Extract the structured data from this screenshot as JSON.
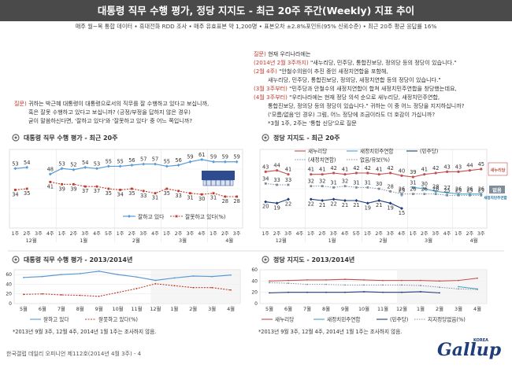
{
  "header": {
    "title": "대통령 직무 수행 평가, 정당 지지도 - 최근 20주 주간(Weekly) 지표 추이",
    "subtitle": "매주 월~목 통합 데이터 • 휴대전화 RDD 조사 • 매주 유효표본 약 1,200명 • 표본오차 ±2.8%포인트(95% 신뢰수준) • 최근 20주 평균 응답률 16%"
  },
  "question_left": {
    "label": "질문)",
    "lines": [
      "귀하는 박근혜 대통령이 대통령으로서의 직무를 잘 수행하고 있다고 보십니까,",
      "혹은 잘못 수행하고 있다고 보십니까? (긍정/부정을 답하지 않은 경우)",
      "굳이 말씀하신다면, '잘하고 있다'와 '잘못하고 있다' 중 어느 쪽입니까?"
    ]
  },
  "question_right": {
    "label": "질문)",
    "lines": [
      {
        "red": "",
        "text": "현재 우리나라에는"
      },
      {
        "red": "(2014년 2월 3주까지)",
        "text": " \"새누리당, 민주당, 통합진보당, 정의당 등의 정당이 있습니다.\""
      },
      {
        "red": "(2월 4주)",
        "text": " \"안철수의원이 추진 중인 새정치연합을 포함해,"
      },
      {
        "red": "",
        "text": "새누리당, 민주당, 통합진보당, 정의당, 새정치연합 등의 정당이 있습니다.\""
      },
      {
        "red": "(3월 3주부터)",
        "text": " \"민주당과 안철수의 새정치연합이 합쳐 새정치민주연합을 창당했는데요,"
      },
      {
        "red": "(4월 3주부터)",
        "text": " \"우리나라에는 현재 정당 의석 순으로 새누리당, 새정치민주연합,"
      },
      {
        "red": "",
        "text": "통합진보당, 정의당 등의 정당이 있습니다.\" 귀하는 이 중 어느 정당을 지지하십니까?"
      },
      {
        "red": "",
        "text": "('모름/없음'인 경우) 그럼, 어느 정당에 조금이라도 더 호감이 가십니까?"
      },
      {
        "red": "",
        "text": "*3월 1주, 2주는 '통합 신당'으로 질문"
      }
    ]
  },
  "approval_panel": {
    "title": "대통령 직무 수행 평가 - 최근 20주",
    "icon": "circle-bullet-icon",
    "legend": [
      "잘하고 있다",
      "잘못하고 있다(%)"
    ],
    "legend_badge": "BLUE-HOUSE"
  },
  "party_panel": {
    "title": "정당 지지도 - 최근 20주",
    "icon": "circle-bullet-icon",
    "legend": [
      "새누리당",
      "새정치민주연합",
      "(민주당)",
      "(새정치연합)",
      "없음/유보(%)"
    ],
    "end_labels": [
      "새누리당",
      "없음",
      "새정치민주연합"
    ]
  },
  "approval_long_panel": {
    "title": "대통령 직무 수행 평가 - 2013/2014년",
    "icon": "circle-bullet-icon",
    "legend": [
      "잘하고 있다",
      "잘못하고 있다(%)"
    ],
    "months": [
      "5월",
      "6월",
      "7월",
      "8월",
      "9월",
      "10월",
      "11월",
      "12월",
      "1월",
      "2월",
      "3월",
      "4월"
    ],
    "note": "*2013년 9월 3주, 12월 4주, 2014년 1월 1주는 조사하지 않음."
  },
  "party_long_panel": {
    "title": "정당 지지도 - 2013/2014년",
    "icon": "circle-bullet-icon",
    "legend": [
      "새누리당",
      "새정치민주연합",
      "(민주당)",
      "지지정당없음(%)"
    ],
    "months": [
      "5월",
      "6월",
      "7월",
      "8월",
      "9월",
      "10월",
      "11월",
      "12월",
      "1월",
      "2월",
      "3월",
      "4월"
    ],
    "note": "*2013년 9월 3주, 12월 4주, 2014년 1월 1주는 조사하지 않음."
  },
  "footer": {
    "text": "한국갤럽 데일리 오피니언 제112호(2014년 4월 3주) - 4",
    "logo": "Gallup",
    "logo_small": "KOREA"
  },
  "colors": {
    "approve": "#5b9bd5",
    "disapprove": "#c0392b",
    "saenuri": "#c0504d",
    "npad": "#4aa3c8",
    "democratic": "#1f3d7a",
    "newpolitics": "#8faadc",
    "none": "#7f8c9a"
  },
  "chart_data": [
    {
      "type": "line",
      "title": "대통령 직무 수행 평가 - 최근 20주",
      "x": [
        "1주",
        "2주",
        "3주",
        "4주",
        "1주",
        "2주",
        "3주",
        "4주",
        "5주",
        "1주",
        "2주",
        "3주",
        "4주",
        "1주",
        "2주",
        "3주",
        "4주",
        "1주",
        "2주",
        "3주"
      ],
      "month_groups": [
        "12월",
        "1월",
        "2월",
        "3월",
        "4월"
      ],
      "ylim": [
        0,
        70
      ],
      "series": [
        {
          "name": "잘하고 있다",
          "values": [
            53,
            54,
            null,
            48,
            53,
            52,
            54,
            53,
            55,
            55,
            56,
            57,
            57,
            55,
            56,
            59,
            61,
            59,
            59,
            59
          ],
          "labels": [
            "53",
            "54",
            "",
            "48",
            "53",
            "52",
            "54",
            "53",
            "55",
            "55",
            "56",
            "57",
            "57",
            "55",
            "56",
            "59",
            "61",
            "59",
            "59",
            "59"
          ]
        },
        {
          "name": "잘못하고 있다(%)",
          "values": [
            34,
            35,
            null,
            41,
            39,
            39,
            37,
            37,
            35,
            34,
            35,
            33,
            31,
            35,
            33,
            31,
            30,
            31,
            28,
            28
          ],
          "labels": [
            "34",
            "35",
            "",
            "41",
            "39",
            "39",
            "37",
            "37",
            "35",
            "34",
            "35",
            "33",
            "31",
            "35",
            "33",
            "31",
            "30",
            "31",
            "28",
            "28"
          ]
        }
      ]
    },
    {
      "type": "line",
      "title": "정당 지지도 - 최근 20주",
      "x": [
        "1주",
        "2주",
        "3주",
        "4주",
        "1주",
        "2주",
        "3주",
        "4주",
        "5주",
        "1주",
        "2주",
        "3주",
        "4주",
        "1주",
        "2주",
        "3주",
        "4주",
        "1주",
        "2주",
        "3주"
      ],
      "month_groups": [
        "12월",
        "1월",
        "2월",
        "3월",
        "4월"
      ],
      "ylim": [
        0,
        60
      ],
      "series": [
        {
          "name": "새누리당",
          "values": [
            43,
            44,
            41,
            null,
            41,
            41,
            42,
            41,
            42,
            42,
            41,
            42,
            40,
            39,
            41,
            42,
            43,
            43,
            44,
            45
          ]
        },
        {
          "name": "새정치민주연합",
          "values": [
            null,
            null,
            null,
            null,
            null,
            null,
            null,
            null,
            null,
            null,
            null,
            null,
            null,
            31,
            30,
            28,
            27,
            26,
            26,
            26
          ]
        },
        {
          "name": "(민주당)",
          "values": [
            20,
            19,
            22,
            null,
            22,
            21,
            22,
            21,
            21,
            19,
            21,
            19,
            15,
            null,
            null,
            null,
            null,
            null,
            null,
            null
          ]
        },
        {
          "name": "(새정치연합)",
          "values": [
            null,
            null,
            null,
            null,
            null,
            null,
            null,
            null,
            null,
            null,
            null,
            null,
            25,
            null,
            null,
            null,
            null,
            null,
            null,
            null
          ]
        },
        {
          "name": "없음/유보(%)",
          "values": [
            34,
            33,
            33,
            null,
            32,
            32,
            31,
            32,
            31,
            31,
            30,
            28,
            26,
            26,
            26,
            26,
            25,
            25,
            25,
            25
          ]
        }
      ]
    },
    {
      "type": "line",
      "title": "대통령 직무 수행 평가 - 2013/2014년",
      "x": [
        "5월",
        "6월",
        "7월",
        "8월",
        "9월",
        "10월",
        "11월",
        "12월",
        "1월",
        "2월",
        "3월",
        "4월"
      ],
      "ylim": [
        0,
        70
      ],
      "series": [
        {
          "name": "잘하고 있다",
          "values": [
            54,
            56,
            60,
            62,
            67,
            60,
            55,
            48,
            53,
            57,
            56,
            59
          ]
        },
        {
          "name": "잘못하고 있다(%)",
          "values": [
            19,
            20,
            18,
            17,
            15,
            23,
            31,
            41,
            37,
            33,
            33,
            28
          ]
        }
      ]
    },
    {
      "type": "line",
      "title": "정당 지지도 - 2013/2014년",
      "x": [
        "5월",
        "6월",
        "7월",
        "8월",
        "9월",
        "10월",
        "11월",
        "12월",
        "1월",
        "2월",
        "3월",
        "4월"
      ],
      "ylim": [
        0,
        60
      ],
      "series": [
        {
          "name": "새누리당",
          "values": [
            40,
            41,
            42,
            42,
            43,
            42,
            41,
            41,
            41,
            40,
            41,
            45
          ]
        },
        {
          "name": "새정치민주연합",
          "values": [
            null,
            null,
            null,
            null,
            null,
            null,
            null,
            null,
            null,
            null,
            30,
            26
          ]
        },
        {
          "name": "(민주당)",
          "values": [
            19,
            20,
            20,
            20,
            20,
            21,
            20,
            20,
            21,
            19,
            null,
            null
          ]
        },
        {
          "name": "지지정당없음(%)",
          "values": [
            37,
            36,
            34,
            34,
            33,
            33,
            33,
            33,
            32,
            29,
            26,
            25
          ]
        }
      ]
    }
  ]
}
